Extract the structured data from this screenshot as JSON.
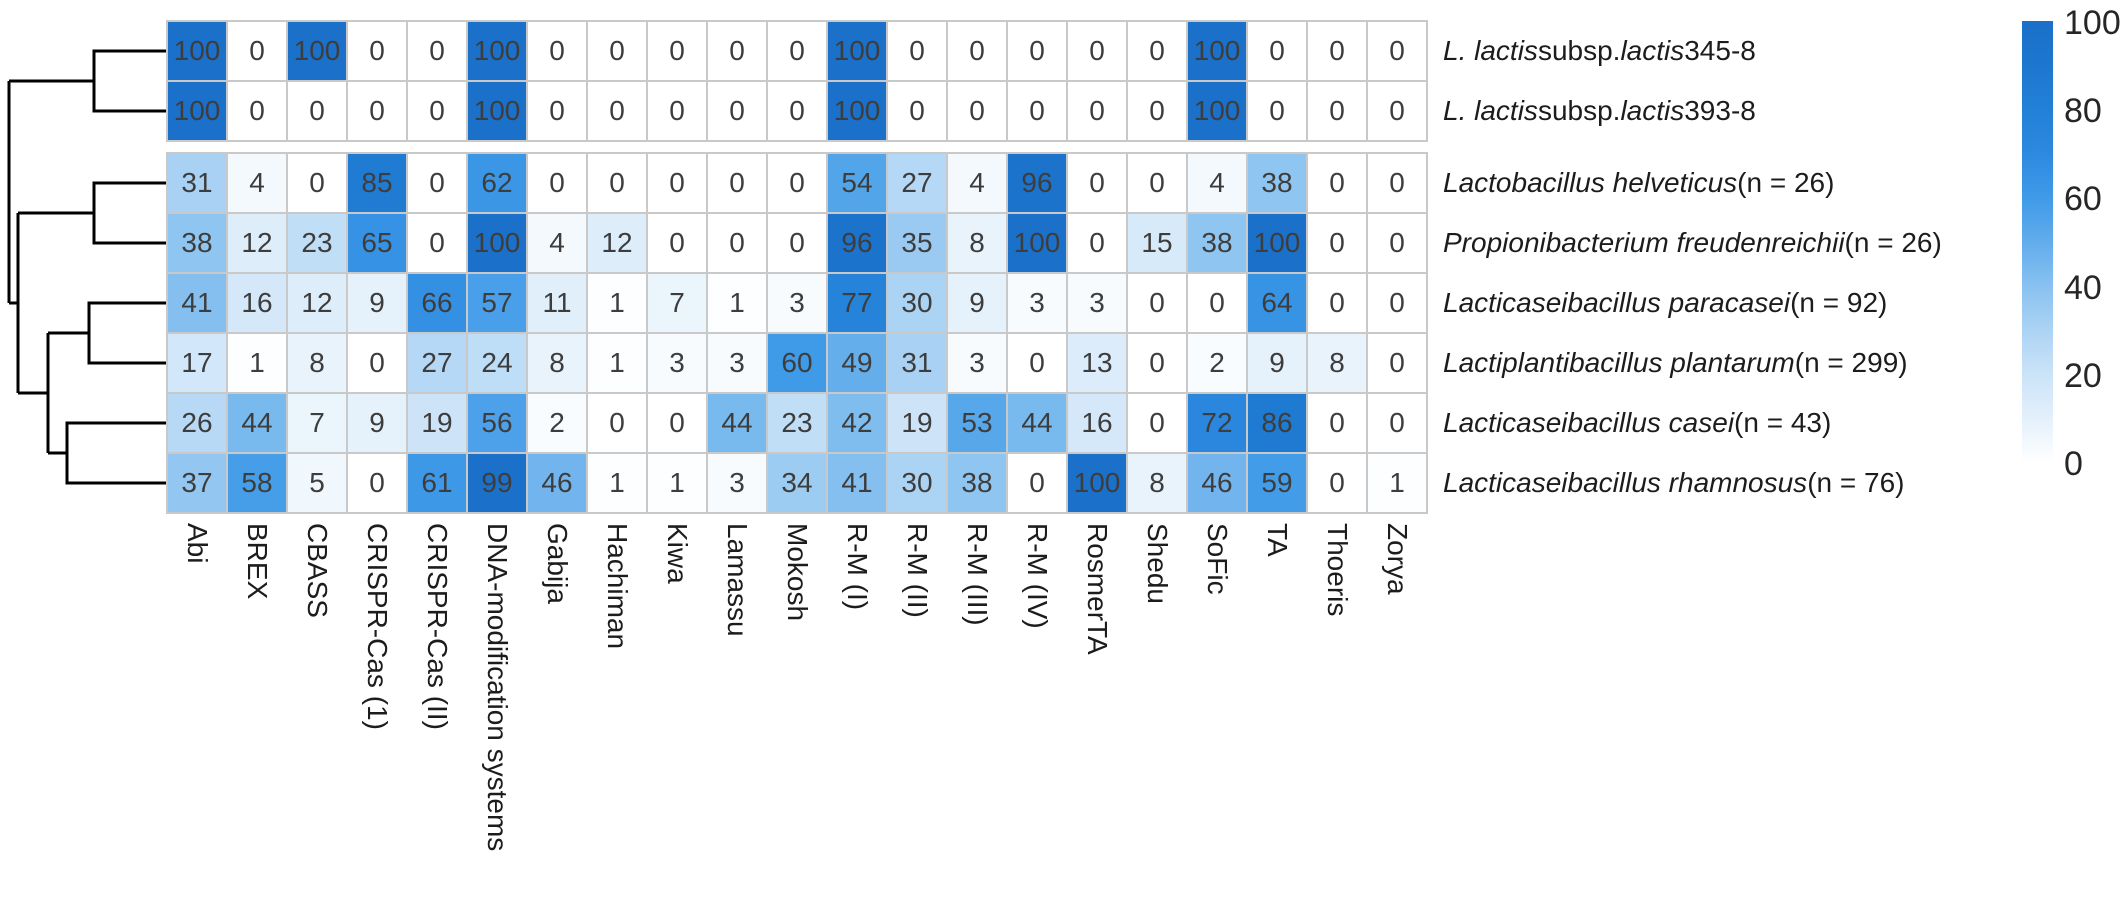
{
  "figure": {
    "background": "#ffffff"
  },
  "chart_data": {
    "type": "heatmap",
    "title": "",
    "xlabel": "",
    "ylabel": "",
    "columns": [
      "Abi",
      "BREX",
      "CBASS",
      "CRISPR-Cas (1)",
      "CRISPR-Cas (II)",
      "DNA-modification systems",
      "Gabija",
      "Hachiman",
      "Kiwa",
      "Lamassu",
      "Mokosh",
      "R-M (I)",
      "R-M (II)",
      "R-M (III)",
      "R-M (IV)",
      "RosmerTA",
      "Shedu",
      "SoFic",
      "TA",
      "Thoeris",
      "Zorya"
    ],
    "rows": [
      {
        "segments": [
          {
            "text": "L. lactis",
            "italic": true
          },
          {
            "text": " subsp. ",
            "italic": false
          },
          {
            "text": "lactis",
            "italic": true
          },
          {
            "text": " 345-8",
            "italic": false
          }
        ],
        "values": [
          100,
          0,
          100,
          0,
          0,
          100,
          0,
          0,
          0,
          0,
          0,
          100,
          0,
          0,
          0,
          0,
          0,
          100,
          0,
          0,
          0
        ]
      },
      {
        "segments": [
          {
            "text": "L. lactis",
            "italic": true
          },
          {
            "text": " subsp. ",
            "italic": false
          },
          {
            "text": "lactis",
            "italic": true
          },
          {
            "text": " 393-8",
            "italic": false
          }
        ],
        "values": [
          100,
          0,
          0,
          0,
          0,
          100,
          0,
          0,
          0,
          0,
          0,
          100,
          0,
          0,
          0,
          0,
          0,
          100,
          0,
          0,
          0
        ]
      },
      {
        "segments": [
          {
            "text": "Lactobacillus helveticus",
            "italic": true
          },
          {
            "text": " (n = 26)",
            "italic": false
          }
        ],
        "values": [
          31,
          4,
          0,
          85,
          0,
          62,
          0,
          0,
          0,
          0,
          0,
          54,
          27,
          4,
          96,
          0,
          0,
          4,
          38,
          0,
          0
        ]
      },
      {
        "segments": [
          {
            "text": "Propionibacterium freudenreichii",
            "italic": true
          },
          {
            "text": " (n = 26)",
            "italic": false
          }
        ],
        "values": [
          38,
          12,
          23,
          65,
          0,
          100,
          4,
          12,
          0,
          0,
          0,
          96,
          35,
          8,
          100,
          0,
          15,
          38,
          100,
          0,
          0
        ]
      },
      {
        "segments": [
          {
            "text": "Lacticaseibacillus paracasei",
            "italic": true
          },
          {
            "text": " (n = 92)",
            "italic": false
          }
        ],
        "values": [
          41,
          16,
          12,
          9,
          66,
          57,
          11,
          1,
          7,
          1,
          3,
          77,
          30,
          9,
          3,
          3,
          0,
          0,
          64,
          0,
          0
        ]
      },
      {
        "segments": [
          {
            "text": "Lactiplantibacillus plantarum",
            "italic": true
          },
          {
            "text": " (n = 299)",
            "italic": false
          }
        ],
        "values": [
          17,
          1,
          8,
          0,
          27,
          24,
          8,
          1,
          3,
          3,
          60,
          49,
          31,
          3,
          0,
          13,
          0,
          2,
          9,
          8,
          0
        ]
      },
      {
        "segments": [
          {
            "text": "Lacticaseibacillus casei",
            "italic": true
          },
          {
            "text": " (n = 43)",
            "italic": false
          }
        ],
        "values": [
          26,
          44,
          7,
          9,
          19,
          56,
          2,
          0,
          0,
          44,
          23,
          42,
          19,
          53,
          44,
          16,
          0,
          72,
          86,
          0,
          0
        ]
      },
      {
        "segments": [
          {
            "text": "Lacticaseibacillus rhamnosus",
            "italic": true
          },
          {
            "text": " (n = 76)",
            "italic": false
          }
        ],
        "values": [
          37,
          58,
          5,
          0,
          61,
          99,
          46,
          1,
          1,
          3,
          34,
          41,
          30,
          38,
          0,
          100,
          8,
          46,
          59,
          0,
          1
        ]
      }
    ],
    "row_groups": [
      [
        0,
        1
      ],
      [
        2,
        3,
        4,
        5,
        6,
        7
      ]
    ],
    "value_range": [
      0,
      100
    ],
    "legend_position": "right",
    "colorbar_ticks": [
      100,
      80,
      60,
      40,
      20,
      0
    ],
    "colormap_stops": [
      [
        0,
        "#ffffff"
      ],
      [
        10,
        "#e3f0fb"
      ],
      [
        20,
        "#cae3f8"
      ],
      [
        30,
        "#abd3f4"
      ],
      [
        40,
        "#88c1f0"
      ],
      [
        50,
        "#61acec"
      ],
      [
        60,
        "#3f9ae8"
      ],
      [
        70,
        "#2c89df"
      ],
      [
        80,
        "#2280d7"
      ],
      [
        90,
        "#1d77cf"
      ],
      [
        100,
        "#1b70c9"
      ]
    ],
    "cell_text_color": "#3d3d3d",
    "grid_color": "#c9c9c9"
  },
  "dendrogram": {
    "color": "#000000",
    "stroke_width": 3,
    "paths": [
      "M167 51 H94 V111 H167",
      "M94 81 H9",
      "M167 183 H94 V243 H167",
      "M94 213 H18",
      "M167 303 H89 V363 H167",
      "M89 333 H48",
      "M167 423 H67 V483 H167",
      "M67 453 H48",
      "M48 333 V453",
      "M48 393 H18",
      "M18 213 V393",
      "M18 303 H9",
      "M9 81 V303"
    ]
  }
}
